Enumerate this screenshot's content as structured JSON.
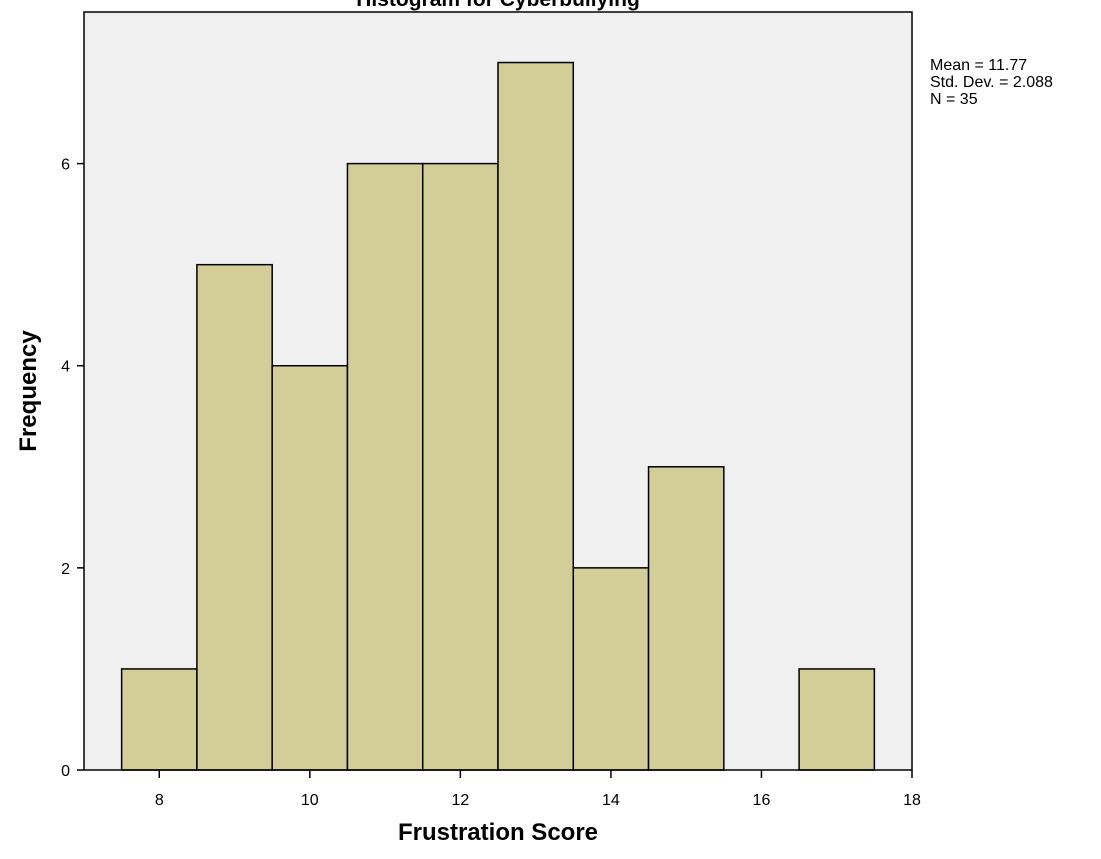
{
  "chart_data": {
    "type": "bar",
    "title": "Histogram for Cyberbullying",
    "xlabel": "Frustration Score",
    "ylabel": "Frequency",
    "bins": [
      {
        "x0": 7.5,
        "x1": 8.5,
        "value": 1
      },
      {
        "x0": 8.5,
        "x1": 9.5,
        "value": 5
      },
      {
        "x0": 9.5,
        "x1": 10.5,
        "value": 4
      },
      {
        "x0": 10.5,
        "x1": 11.5,
        "value": 6
      },
      {
        "x0": 11.5,
        "x1": 12.5,
        "value": 6
      },
      {
        "x0": 12.5,
        "x1": 13.5,
        "value": 7
      },
      {
        "x0": 13.5,
        "x1": 14.5,
        "value": 2
      },
      {
        "x0": 14.5,
        "x1": 15.5,
        "value": 3
      },
      {
        "x0": 16.5,
        "x1": 17.5,
        "value": 1
      }
    ],
    "xlim": [
      7,
      18
    ],
    "ylim": [
      0,
      7.5
    ],
    "x_ticks": [
      8,
      10,
      12,
      14,
      16,
      18
    ],
    "y_ticks": [
      0,
      2,
      4,
      6
    ],
    "grid": false,
    "colors": {
      "bar_fill": "#d3ce98",
      "bar_stroke": "#000000",
      "plot_background": "#f0f0f0"
    },
    "stats": {
      "mean": "Mean = 11.77",
      "std_dev": "Std. Dev. = 2.088",
      "n": "N = 35"
    },
    "stats_placement": "top-right"
  }
}
